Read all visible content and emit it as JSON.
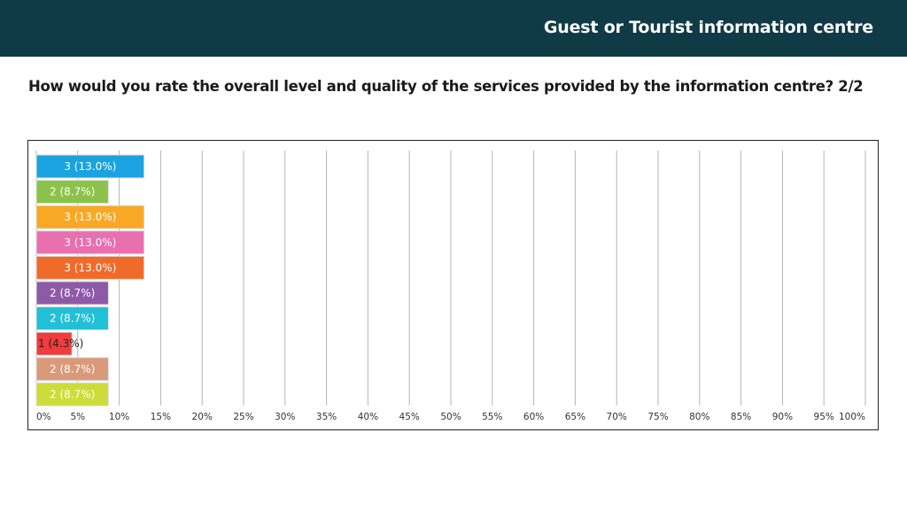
{
  "header": {
    "title": "Guest or Tourist information centre"
  },
  "question": {
    "text": "How would you rate the overall level and quality of the services provided by the information centre? 2/2"
  },
  "chart_data": {
    "type": "bar",
    "orientation": "horizontal",
    "xlim": [
      0,
      100
    ],
    "x_tick_labels": [
      "0%",
      "5%",
      "10%",
      "15%",
      "20%",
      "25%",
      "30%",
      "35%",
      "40%",
      "45%",
      "50%",
      "55%",
      "60%",
      "65%",
      "70%",
      "75%",
      "80%",
      "85%",
      "90%",
      "95%",
      "100%"
    ],
    "grid": true,
    "bars": [
      {
        "count": 3,
        "percent": 13.0,
        "label": "3 (13.0%)",
        "color": "#1aa3e0",
        "label_color": "#ffffff"
      },
      {
        "count": 2,
        "percent": 8.7,
        "label": "2 (8.7%)",
        "color": "#8bc34a",
        "label_color": "#ffffff"
      },
      {
        "count": 3,
        "percent": 13.0,
        "label": "3 (13.0%)",
        "color": "#f9a825",
        "label_color": "#ffffff"
      },
      {
        "count": 3,
        "percent": 13.0,
        "label": "3 (13.0%)",
        "color": "#e86fb0",
        "label_color": "#ffffff"
      },
      {
        "count": 3,
        "percent": 13.0,
        "label": "3 (13.0%)",
        "color": "#f06a2a",
        "label_color": "#ffffff"
      },
      {
        "count": 2,
        "percent": 8.7,
        "label": "2 (8.7%)",
        "color": "#8e5aa8",
        "label_color": "#ffffff"
      },
      {
        "count": 2,
        "percent": 8.7,
        "label": "2 (8.7%)",
        "color": "#22c0d6",
        "label_color": "#ffffff"
      },
      {
        "count": 1,
        "percent": 4.3,
        "label": "1 (4.3%)",
        "color": "#f03c3c",
        "label_color": "#222222"
      },
      {
        "count": 2,
        "percent": 8.7,
        "label": "2 (8.7%)",
        "color": "#d99a7a",
        "label_color": "#ffffff"
      },
      {
        "count": 2,
        "percent": 8.7,
        "label": "2 (8.7%)",
        "color": "#cddc39",
        "label_color": "#ffffff"
      }
    ]
  }
}
